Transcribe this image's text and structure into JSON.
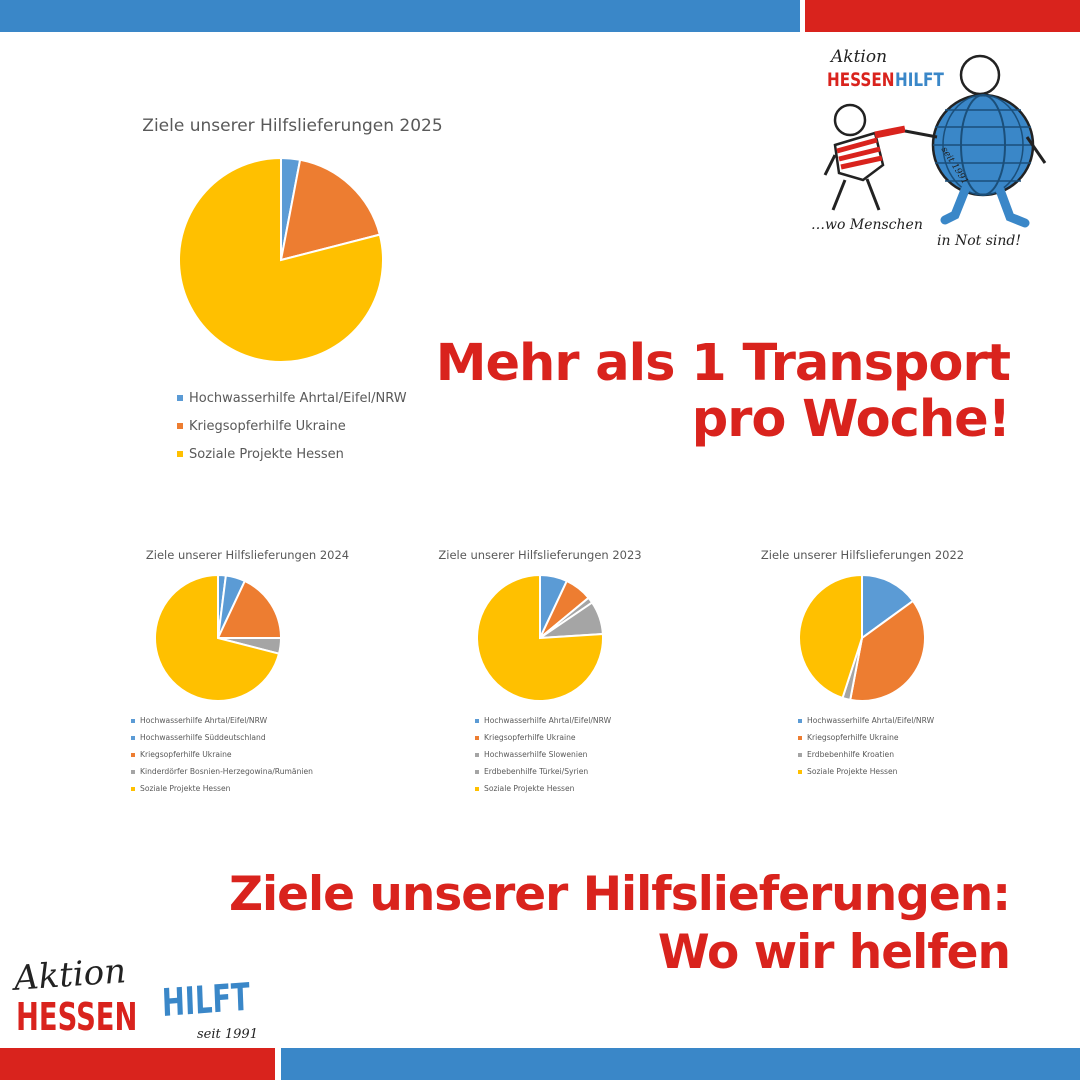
{
  "colors": {
    "brand_blue": "#3a87c8",
    "brand_red": "#d9231d",
    "series": {
      "blue": "#5b9bd5",
      "orange": "#ed7d31",
      "gray": "#a5a5a5",
      "yellow": "#ffc000"
    }
  },
  "headline_top": {
    "lines": [
      "Mehr als 1 Transport",
      "pro Woche!"
    ]
  },
  "headline_bottom": {
    "lines": [
      "Ziele unserer Hilfslieferungen:",
      "Wo wir helfen"
    ]
  },
  "logo_top": {
    "aktion": "Aktion",
    "hessen": "HESSEN",
    "hilft": "HILFT",
    "seit": "seit 1991",
    "tagline_1": "…wo Menschen",
    "tagline_2": "in Not sind!",
    "icon": "hessen-hilft-mascot"
  },
  "logo_bottom": {
    "aktion": "Aktion",
    "hessen": "HESSEN",
    "hilft": "HILFT",
    "seit": "seit 1991"
  },
  "chart_data": [
    {
      "type": "pie",
      "title": "Ziele unserer Hilfslieferungen 2025",
      "slices": [
        {
          "label": "Hochwasserhilfe Ahrtal/Eifel/NRW",
          "value": 3,
          "color": "#5b9bd5"
        },
        {
          "label": "Kriegsopferhilfe Ukraine",
          "value": 18,
          "color": "#ed7d31"
        },
        {
          "label": "Soziale Projekte Hessen",
          "value": 79,
          "color": "#ffc000"
        }
      ]
    },
    {
      "type": "pie",
      "title": "Ziele unserer Hilfslieferungen 2024",
      "slices": [
        {
          "label": "Hochwasserhilfe Ahrtal/Eifel/NRW",
          "value": 2,
          "color": "#5b9bd5"
        },
        {
          "label": "Hochwasserhilfe Süddeutschland",
          "value": 5,
          "color": "#5b9bd5"
        },
        {
          "label": "Kriegsopferhilfe Ukraine",
          "value": 18,
          "color": "#ed7d31"
        },
        {
          "label": "Kinderdörfer Bosnien-Herzegowina/Rumänien",
          "value": 4,
          "color": "#a5a5a5"
        },
        {
          "label": "Soziale Projekte Hessen",
          "value": 71,
          "color": "#ffc000"
        }
      ]
    },
    {
      "type": "pie",
      "title": "Ziele unserer Hilfslieferungen 2023",
      "slices": [
        {
          "label": "Hochwasserhilfe Ahrtal/Eifel/NRW",
          "value": 7,
          "color": "#5b9bd5"
        },
        {
          "label": "Kriegsopferhilfe Ukraine",
          "value": 7,
          "color": "#ed7d31"
        },
        {
          "label": "Hochwasserhilfe Slowenien",
          "value": 1.5,
          "color": "#a5a5a5"
        },
        {
          "label": "Erdbebenhilfe Türkei/Syrien",
          "value": 8.5,
          "color": "#a5a5a5"
        },
        {
          "label": "Soziale Projekte Hessen",
          "value": 76,
          "color": "#ffc000"
        }
      ]
    },
    {
      "type": "pie",
      "title": "Ziele unserer Hilfslieferungen 2022",
      "slices": [
        {
          "label": "Hochwasserhilfe Ahrtal/Eifel/NRW",
          "value": 15,
          "color": "#5b9bd5"
        },
        {
          "label": "Kriegsopferhilfe Ukraine",
          "value": 38,
          "color": "#ed7d31"
        },
        {
          "label": "Erdbebenhilfe Kroatien",
          "value": 2,
          "color": "#a5a5a5"
        },
        {
          "label": "Soziale Projekte Hessen",
          "value": 45,
          "color": "#ffc000"
        }
      ]
    }
  ]
}
